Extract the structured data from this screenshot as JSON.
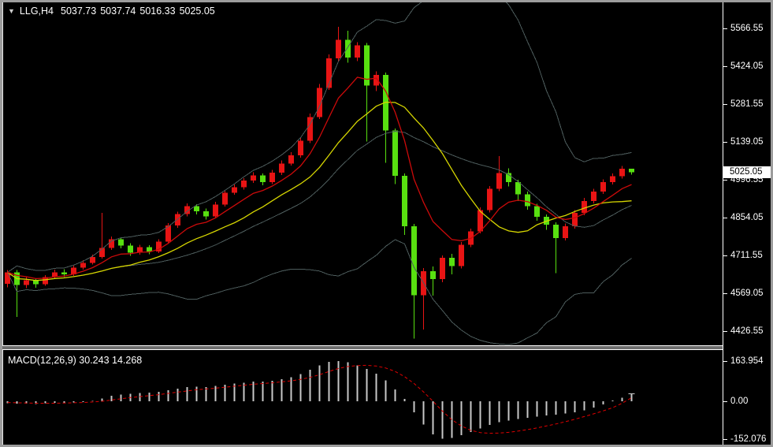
{
  "titlebar": {
    "dropdown_icon": "▼",
    "symbol": "LLG,H4",
    "open": "5037.73",
    "high": "5037.74",
    "low": "5016.33",
    "close": "5025.05"
  },
  "macd_panel": {
    "label": "MACD(12,26,9) 30.243 14.268"
  },
  "price_axis": {
    "ticks": [
      {
        "label": "5566.55",
        "value": 5566.55
      },
      {
        "label": "5424.05",
        "value": 5424.05
      },
      {
        "label": "5281.55",
        "value": 5281.55
      },
      {
        "label": "5139.05",
        "value": 5139.05
      },
      {
        "label": "4996.55",
        "value": 4996.55
      },
      {
        "label": "4854.05",
        "value": 4854.05
      },
      {
        "label": "4711.55",
        "value": 4711.55
      },
      {
        "label": "4569.05",
        "value": 4569.05
      },
      {
        "label": "4426.55",
        "value": 4426.55
      }
    ],
    "current": {
      "label": "5025.05",
      "value": 5025.05
    }
  },
  "macd_axis": {
    "ticks": [
      {
        "label": "163.954",
        "value": 163.954
      },
      {
        "label": "0.00",
        "value": 0
      },
      {
        "label": "-152.076",
        "value": -152.076
      }
    ]
  },
  "colors": {
    "background": "#000000",
    "frame": "#9c9c9c",
    "up_candle": "#e81414",
    "down_candle": "#58e010",
    "ma_fast": "#cc0a0a",
    "ma_slow": "#d6d600",
    "bollinger": "#4d5c5c",
    "macd_histogram": "#c8c8c8",
    "macd_signal": "#e00000",
    "axis_text": "#ffffff",
    "current_price_bg": "#ffffff",
    "current_price_text": "#000000"
  },
  "chart_data": [
    {
      "type": "candlestick",
      "title": "LLG,H4",
      "symbol": "LLG",
      "timeframe": "H4",
      "up_color_meaning": "bullish (close>open) drawn red, bearish drawn green",
      "ylim": [
        4373.1,
        5664.5
      ],
      "y_ticks": [
        5566.55,
        5424.05,
        5281.55,
        5139.05,
        4996.55,
        4854.05,
        4711.55,
        4569.05,
        4426.55
      ],
      "grid": false,
      "x0": 5,
      "dx": 12,
      "candle_width": 7,
      "current_price": 5025.05,
      "last_ohlc": {
        "open": 5037.73,
        "high": 5037.74,
        "low": 5016.33,
        "close": 5025.05
      },
      "overlays": [
        {
          "name": "ma-fast",
          "kind": "ema",
          "period": 7,
          "color_key": "ma_fast"
        },
        {
          "name": "ma-slow",
          "kind": "sma",
          "period": 13,
          "color_key": "ma_slow"
        },
        {
          "name": "bollinger-bands",
          "kind": "bollinger",
          "period": 20,
          "deviation": 2,
          "color_key": "bollinger"
        }
      ],
      "candles": [
        [
          4605,
          4656,
          4592,
          4648
        ],
        [
          4648,
          4657,
          4480,
          4600
        ],
        [
          4600,
          4630,
          4588,
          4618
        ],
        [
          4618,
          4626,
          4590,
          4603
        ],
        [
          4603,
          4638,
          4597,
          4630
        ],
        [
          4630,
          4658,
          4624,
          4648
        ],
        [
          4648,
          4660,
          4630,
          4641
        ],
        [
          4641,
          4673,
          4634,
          4665
        ],
        [
          4665,
          4693,
          4658,
          4684
        ],
        [
          4684,
          4715,
          4677,
          4706
        ],
        [
          4706,
          4872,
          4700,
          4740
        ],
        [
          4740,
          4783,
          4733,
          4772
        ],
        [
          4772,
          4780,
          4738,
          4748
        ],
        [
          4748,
          4757,
          4710,
          4722
        ],
        [
          4722,
          4752,
          4714,
          4742
        ],
        [
          4742,
          4750,
          4716,
          4727
        ],
        [
          4727,
          4773,
          4720,
          4764
        ],
        [
          4764,
          4833,
          4757,
          4824
        ],
        [
          4824,
          4877,
          4816,
          4867
        ],
        [
          4867,
          4907,
          4859,
          4897
        ],
        [
          4897,
          4905,
          4866,
          4878
        ],
        [
          4878,
          4888,
          4846,
          4858
        ],
        [
          4858,
          4913,
          4851,
          4903
        ],
        [
          4903,
          4958,
          4895,
          4948
        ],
        [
          4948,
          4979,
          4940,
          4968
        ],
        [
          4968,
          5003,
          4960,
          4993
        ],
        [
          4993,
          5024,
          4985,
          5013
        ],
        [
          5013,
          5020,
          4976,
          4988
        ],
        [
          4988,
          5033,
          4980,
          5023
        ],
        [
          5023,
          5069,
          5015,
          5058
        ],
        [
          5058,
          5100,
          5050,
          5088
        ],
        [
          5088,
          5155,
          5080,
          5143
        ],
        [
          5143,
          5246,
          5135,
          5233
        ],
        [
          5233,
          5357,
          5225,
          5343
        ],
        [
          5343,
          5468,
          5335,
          5453
        ],
        [
          5453,
          5572,
          5444,
          5523
        ],
        [
          5523,
          5557,
          5437,
          5457
        ],
        [
          5457,
          5514,
          5444,
          5503
        ],
        [
          5503,
          5512,
          5140,
          5352
        ],
        [
          5352,
          5404,
          5330,
          5392
        ],
        [
          5392,
          5400,
          5060,
          5182
        ],
        [
          5182,
          5190,
          4980,
          5012
        ],
        [
          5012,
          5020,
          4788,
          4822
        ],
        [
          4822,
          4830,
          4398,
          4562
        ],
        [
          4562,
          4664,
          4432,
          4652
        ],
        [
          4652,
          4670,
          4560,
          4622
        ],
        [
          4622,
          4712,
          4610,
          4702
        ],
        [
          4702,
          4718,
          4640,
          4672
        ],
        [
          4672,
          4762,
          4663,
          4752
        ],
        [
          4752,
          4812,
          4742,
          4802
        ],
        [
          4802,
          4893,
          4794,
          4882
        ],
        [
          4882,
          4973,
          4874,
          4962
        ],
        [
          4962,
          5085,
          4954,
          5022
        ],
        [
          5022,
          5040,
          4972,
          4987
        ],
        [
          4987,
          4996,
          4916,
          4942
        ],
        [
          4942,
          4952,
          4884,
          4897
        ],
        [
          4897,
          4906,
          4842,
          4857
        ],
        [
          4857,
          4866,
          4808,
          4827
        ],
        [
          4827,
          4836,
          4645,
          4777
        ],
        [
          4777,
          4832,
          4768,
          4822
        ],
        [
          4822,
          4882,
          4812,
          4872
        ],
        [
          4872,
          4928,
          4863,
          4917
        ],
        [
          4917,
          4962,
          4908,
          4952
        ],
        [
          4952,
          4998,
          4943,
          4987
        ],
        [
          4987,
          5021,
          4978,
          5010
        ],
        [
          5010,
          5048,
          5001,
          5037.73
        ],
        [
          5037.73,
          5037.74,
          5016.33,
          5025.05
        ]
      ]
    },
    {
      "type": "bar",
      "title": "MACD(12,26,9)",
      "ylabel": "MACD",
      "ylim": [
        -176,
        208
      ],
      "y_ticks": [
        163.954,
        0,
        -152.076
      ],
      "legend_position": "top-left",
      "last_macd": 30.243,
      "last_signal": 14.268,
      "values": [
        -8,
        -10,
        -9,
        -11,
        -8,
        -6,
        -7,
        -5,
        -3,
        2,
        12,
        22,
        28,
        30,
        33,
        35,
        38,
        45,
        52,
        58,
        60,
        58,
        62,
        68,
        72,
        76,
        80,
        80,
        84,
        90,
        97,
        110,
        128,
        146,
        160,
        163.954,
        158,
        145,
        132,
        112,
        85,
        48,
        10,
        -45,
        -95,
        -135,
        -152.076,
        -148,
        -138,
        -125,
        -110,
        -96,
        -85,
        -78,
        -72,
        -67,
        -62,
        -58,
        -55,
        -50,
        -44,
        -37,
        -25,
        -12,
        3,
        14,
        30.243
      ],
      "signal": [
        -5,
        -6,
        -7,
        -8,
        -8,
        -8,
        -7,
        -6,
        -5,
        -3,
        0,
        5,
        10,
        15,
        19,
        23,
        27,
        32,
        37,
        42,
        47,
        50,
        53,
        57,
        61,
        65,
        69,
        72,
        75,
        79,
        83,
        89,
        97,
        108,
        121,
        133,
        141,
        145,
        146,
        143,
        135,
        121,
        100,
        72,
        38,
        0,
        -40,
        -75,
        -100,
        -118,
        -127,
        -130,
        -129,
        -126,
        -121,
        -115,
        -108,
        -100,
        -92,
        -83,
        -73,
        -62,
        -51,
        -39,
        -26,
        -8,
        14.268
      ]
    }
  ]
}
